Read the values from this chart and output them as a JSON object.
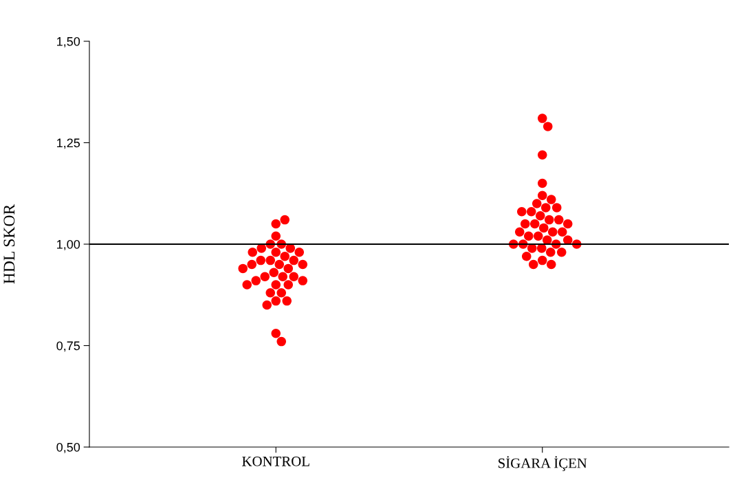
{
  "chart_data": {
    "type": "scatter",
    "ylabel": "HDL SKOR",
    "categories": [
      "KONTROL",
      "SİGARA İÇEN"
    ],
    "series": [
      {
        "color": "#ff0000",
        "x": [
          "KONTROL",
          "KONTROL",
          "KONTROL",
          "KONTROL",
          "KONTROL",
          "KONTROL",
          "KONTROL",
          "KONTROL",
          "KONTROL",
          "KONTROL",
          "KONTROL",
          "KONTROL",
          "KONTROL",
          "KONTROL",
          "KONTROL",
          "KONTROL",
          "KONTROL",
          "KONTROL",
          "KONTROL",
          "KONTROL",
          "KONTROL",
          "KONTROL",
          "KONTROL",
          "KONTROL",
          "KONTROL",
          "KONTROL",
          "KONTROL",
          "KONTROL",
          "KONTROL",
          "KONTROL",
          "KONTROL",
          "KONTROL",
          "KONTROL",
          "KONTROL",
          "KONTROL"
        ],
        "values": [
          1.05,
          1.06,
          1.02,
          1.0,
          1.0,
          0.99,
          0.99,
          0.98,
          0.98,
          0.98,
          0.97,
          0.96,
          0.96,
          0.96,
          0.95,
          0.95,
          0.95,
          0.94,
          0.94,
          0.93,
          0.92,
          0.92,
          0.92,
          0.91,
          0.91,
          0.9,
          0.9,
          0.9,
          0.88,
          0.88,
          0.86,
          0.86,
          0.85,
          0.78,
          0.76
        ]
      },
      {
        "color": "#ff0000",
        "x": [
          "SİGARA İÇEN",
          "SİGARA İÇEN",
          "SİGARA İÇEN",
          "SİGARA İÇEN",
          "SİGARA İÇEN",
          "SİGARA İÇEN",
          "SİGARA İÇEN",
          "SİGARA İÇEN",
          "SİGARA İÇEN",
          "SİGARA İÇEN",
          "SİGARA İÇEN",
          "SİGARA İÇEN",
          "SİGARA İÇEN",
          "SİGARA İÇEN",
          "SİGARA İÇEN",
          "SİGARA İÇEN",
          "SİGARA İÇEN",
          "SİGARA İÇEN",
          "SİGARA İÇEN",
          "SİGARA İÇEN",
          "SİGARA İÇEN",
          "SİGARA İÇEN",
          "SİGARA İÇEN",
          "SİGARA İÇEN",
          "SİGARA İÇEN",
          "SİGARA İÇEN",
          "SİGARA İÇEN",
          "SİGARA İÇEN",
          "SİGARA İÇEN",
          "SİGARA İÇEN",
          "SİGARA İÇEN",
          "SİGARA İÇEN",
          "SİGARA İÇEN",
          "SİGARA İÇEN",
          "SİGARA İÇEN",
          "SİGARA İÇEN",
          "SİGARA İÇEN"
        ],
        "values": [
          1.31,
          1.29,
          1.22,
          1.15,
          1.12,
          1.11,
          1.1,
          1.09,
          1.09,
          1.08,
          1.08,
          1.07,
          1.06,
          1.06,
          1.05,
          1.05,
          1.05,
          1.04,
          1.03,
          1.03,
          1.03,
          1.02,
          1.02,
          1.01,
          1.01,
          1.0,
          1.0,
          1.0,
          1.0,
          0.99,
          0.99,
          0.98,
          0.98,
          0.97,
          0.96,
          0.95,
          0.95
        ]
      }
    ],
    "ylim": [
      0.5,
      1.5
    ],
    "yticks": [
      {
        "value": 0.5,
        "label": "0,50"
      },
      {
        "value": 0.75,
        "label": "0,75"
      },
      {
        "value": 1.0,
        "label": "1,00"
      },
      {
        "value": 1.25,
        "label": "1,25"
      },
      {
        "value": 1.5,
        "label": "1,50"
      }
    ],
    "ref_lines": [
      {
        "axis": "y",
        "value": 1.0,
        "color": "#000000",
        "line_style": "solid"
      }
    ],
    "grid": false,
    "legend": false,
    "marker": "circle"
  }
}
